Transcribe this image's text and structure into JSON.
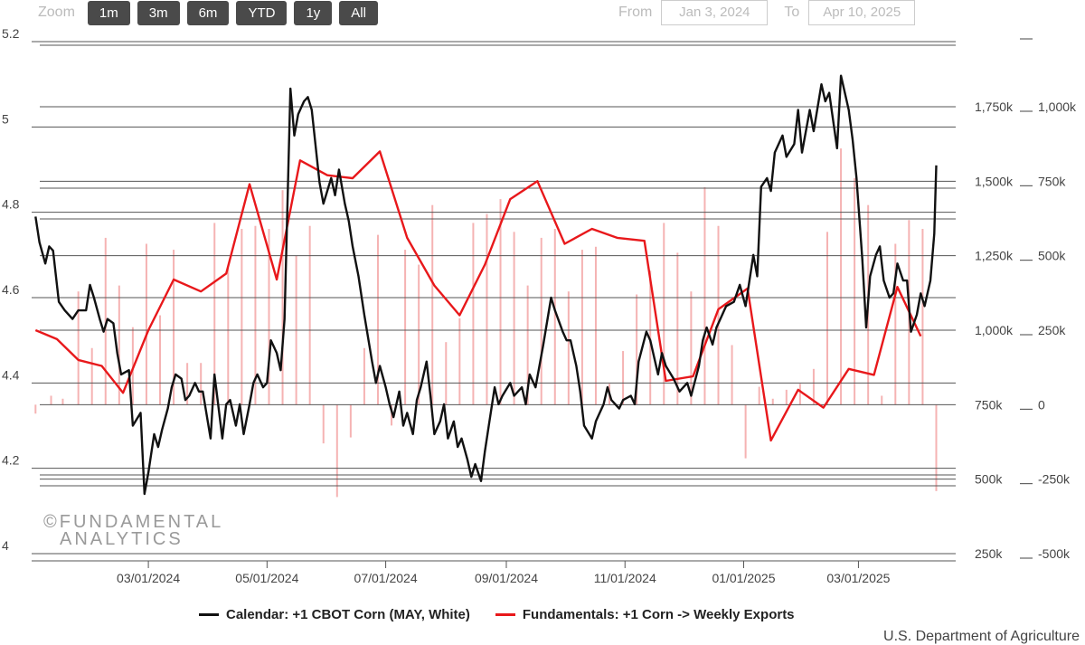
{
  "toolbar": {
    "zoom_label": "Zoom",
    "buttons": [
      "1m",
      "3m",
      "6m",
      "YTD",
      "1y",
      "All"
    ],
    "from_label": "From",
    "from_value": "Jan 3, 2024",
    "to_label": "To",
    "to_value": "Apr 10, 2025"
  },
  "watermark": {
    "line1": "©FUNDAMENTAL",
    "line2": "ANALYTICS"
  },
  "credit": "U.S. Department of Agriculture",
  "colors": {
    "calendar": "#111111",
    "fundamentals": "#e8181b",
    "bars": "#f5b3b3",
    "grid": "#555555"
  },
  "chart_data": {
    "type": "line",
    "x_ticks": [
      "03/01/2024",
      "05/01/2024",
      "07/01/2024",
      "09/01/2024",
      "11/01/2024",
      "01/01/2025",
      "03/01/2025"
    ],
    "xlim": [
      "2024-01-01",
      "2025-04-20"
    ],
    "y_left": {
      "ticks": [
        "5.2",
        "5",
        "4.8",
        "4.6",
        "4.4",
        "4.2",
        "4"
      ],
      "ylim": [
        4.0,
        5.2
      ]
    },
    "y_right_outer": {
      "ticks": [
        "1,000k",
        "750k",
        "500k",
        "250k",
        "0",
        "-250k",
        "-500k"
      ],
      "ylim": [
        -500000,
        1000000
      ]
    },
    "y_right_inner": {
      "ticks": [
        "1,750k",
        "1,500k",
        "1,250k",
        "1,000k",
        "750k",
        "500k",
        "250k"
      ],
      "ylim": [
        250000,
        1750000
      ]
    },
    "legend": [
      {
        "name": "Calendar: +1 CBOT Corn (MAY, White)"
      },
      {
        "name": "Fundamentals: +1 Corn -> Weekly Exports"
      }
    ],
    "series": [
      {
        "name": "Calendar: +1 CBOT Corn (MAY, White)",
        "axis": "left",
        "points": [
          [
            "2024-01-03",
            4.79
          ],
          [
            "2024-01-05",
            4.73
          ],
          [
            "2024-01-08",
            4.68
          ],
          [
            "2024-01-10",
            4.72
          ],
          [
            "2024-01-12",
            4.71
          ],
          [
            "2024-01-15",
            4.59
          ],
          [
            "2024-01-18",
            4.57
          ],
          [
            "2024-01-22",
            4.55
          ],
          [
            "2024-01-25",
            4.57
          ],
          [
            "2024-01-29",
            4.57
          ],
          [
            "2024-01-31",
            4.63
          ],
          [
            "2024-02-02",
            4.6
          ],
          [
            "2024-02-05",
            4.55
          ],
          [
            "2024-02-07",
            4.52
          ],
          [
            "2024-02-09",
            4.55
          ],
          [
            "2024-02-12",
            4.54
          ],
          [
            "2024-02-14",
            4.47
          ],
          [
            "2024-02-16",
            4.42
          ],
          [
            "2024-02-20",
            4.43
          ],
          [
            "2024-02-22",
            4.3
          ],
          [
            "2024-02-26",
            4.33
          ],
          [
            "2024-02-28",
            4.14
          ],
          [
            "2024-03-01",
            4.19
          ],
          [
            "2024-03-04",
            4.28
          ],
          [
            "2024-03-06",
            4.25
          ],
          [
            "2024-03-08",
            4.29
          ],
          [
            "2024-03-11",
            4.34
          ],
          [
            "2024-03-13",
            4.39
          ],
          [
            "2024-03-15",
            4.42
          ],
          [
            "2024-03-18",
            4.41
          ],
          [
            "2024-03-20",
            4.36
          ],
          [
            "2024-03-22",
            4.37
          ],
          [
            "2024-03-25",
            4.4
          ],
          [
            "2024-03-27",
            4.38
          ],
          [
            "2024-03-29",
            4.38
          ],
          [
            "2024-04-02",
            4.27
          ],
          [
            "2024-04-04",
            4.42
          ],
          [
            "2024-04-08",
            4.27
          ],
          [
            "2024-04-10",
            4.35
          ],
          [
            "2024-04-12",
            4.36
          ],
          [
            "2024-04-15",
            4.3
          ],
          [
            "2024-04-17",
            4.35
          ],
          [
            "2024-04-19",
            4.28
          ],
          [
            "2024-04-22",
            4.35
          ],
          [
            "2024-04-24",
            4.4
          ],
          [
            "2024-04-26",
            4.42
          ],
          [
            "2024-04-29",
            4.39
          ],
          [
            "2024-05-01",
            4.4
          ],
          [
            "2024-05-03",
            4.5
          ],
          [
            "2024-05-06",
            4.47
          ],
          [
            "2024-05-08",
            4.43
          ],
          [
            "2024-05-10",
            4.55
          ],
          [
            "2024-05-13",
            5.09
          ],
          [
            "2024-05-15",
            4.98
          ],
          [
            "2024-05-17",
            5.03
          ],
          [
            "2024-05-20",
            5.06
          ],
          [
            "2024-05-22",
            5.07
          ],
          [
            "2024-05-24",
            5.04
          ],
          [
            "2024-05-28",
            4.87
          ],
          [
            "2024-05-30",
            4.82
          ],
          [
            "2024-06-03",
            4.88
          ],
          [
            "2024-06-05",
            4.84
          ],
          [
            "2024-06-07",
            4.9
          ],
          [
            "2024-06-10",
            4.82
          ],
          [
            "2024-06-12",
            4.78
          ],
          [
            "2024-06-14",
            4.72
          ],
          [
            "2024-06-17",
            4.65
          ],
          [
            "2024-06-20",
            4.56
          ],
          [
            "2024-06-24",
            4.45
          ],
          [
            "2024-06-26",
            4.4
          ],
          [
            "2024-06-28",
            4.44
          ],
          [
            "2024-07-01",
            4.39
          ],
          [
            "2024-07-03",
            4.35
          ],
          [
            "2024-07-05",
            4.32
          ],
          [
            "2024-07-08",
            4.38
          ],
          [
            "2024-07-10",
            4.3
          ],
          [
            "2024-07-12",
            4.33
          ],
          [
            "2024-07-15",
            4.28
          ],
          [
            "2024-07-17",
            4.36
          ],
          [
            "2024-07-19",
            4.39
          ],
          [
            "2024-07-22",
            4.45
          ],
          [
            "2024-07-24",
            4.37
          ],
          [
            "2024-07-26",
            4.28
          ],
          [
            "2024-07-29",
            4.31
          ],
          [
            "2024-07-31",
            4.35
          ],
          [
            "2024-08-02",
            4.27
          ],
          [
            "2024-08-05",
            4.31
          ],
          [
            "2024-08-07",
            4.25
          ],
          [
            "2024-08-09",
            4.27
          ],
          [
            "2024-08-12",
            4.22
          ],
          [
            "2024-08-14",
            4.18
          ],
          [
            "2024-08-16",
            4.21
          ],
          [
            "2024-08-19",
            4.17
          ],
          [
            "2024-08-21",
            4.24
          ],
          [
            "2024-08-23",
            4.3
          ],
          [
            "2024-08-26",
            4.39
          ],
          [
            "2024-08-28",
            4.35
          ],
          [
            "2024-08-30",
            4.37
          ],
          [
            "2024-09-03",
            4.4
          ],
          [
            "2024-09-05",
            4.37
          ],
          [
            "2024-09-09",
            4.39
          ],
          [
            "2024-09-11",
            4.35
          ],
          [
            "2024-09-13",
            4.42
          ],
          [
            "2024-09-16",
            4.39
          ],
          [
            "2024-09-18",
            4.44
          ],
          [
            "2024-09-20",
            4.49
          ],
          [
            "2024-09-24",
            4.6
          ],
          [
            "2024-09-26",
            4.57
          ],
          [
            "2024-09-30",
            4.52
          ],
          [
            "2024-10-02",
            4.5
          ],
          [
            "2024-10-04",
            4.5
          ],
          [
            "2024-10-07",
            4.44
          ],
          [
            "2024-10-09",
            4.38
          ],
          [
            "2024-10-11",
            4.3
          ],
          [
            "2024-10-15",
            4.27
          ],
          [
            "2024-10-17",
            4.31
          ],
          [
            "2024-10-21",
            4.35
          ],
          [
            "2024-10-23",
            4.39
          ],
          [
            "2024-10-25",
            4.36
          ],
          [
            "2024-10-29",
            4.34
          ],
          [
            "2024-10-31",
            4.36
          ],
          [
            "2024-11-04",
            4.37
          ],
          [
            "2024-11-06",
            4.35
          ],
          [
            "2024-11-08",
            4.45
          ],
          [
            "2024-11-12",
            4.52
          ],
          [
            "2024-11-14",
            4.5
          ],
          [
            "2024-11-18",
            4.42
          ],
          [
            "2024-11-20",
            4.47
          ],
          [
            "2024-11-22",
            4.44
          ],
          [
            "2024-11-26",
            4.41
          ],
          [
            "2024-11-29",
            4.38
          ],
          [
            "2024-12-03",
            4.4
          ],
          [
            "2024-12-05",
            4.37
          ],
          [
            "2024-12-09",
            4.44
          ],
          [
            "2024-12-11",
            4.5
          ],
          [
            "2024-12-13",
            4.53
          ],
          [
            "2024-12-16",
            4.49
          ],
          [
            "2024-12-18",
            4.53
          ],
          [
            "2024-12-20",
            4.55
          ],
          [
            "2024-12-23",
            4.58
          ],
          [
            "2024-12-27",
            4.59
          ],
          [
            "2024-12-30",
            4.63
          ],
          [
            "2025-01-02",
            4.58
          ],
          [
            "2025-01-06",
            4.7
          ],
          [
            "2025-01-08",
            4.65
          ],
          [
            "2025-01-10",
            4.86
          ],
          [
            "2025-01-13",
            4.88
          ],
          [
            "2025-01-15",
            4.85
          ],
          [
            "2025-01-17",
            4.94
          ],
          [
            "2025-01-21",
            4.98
          ],
          [
            "2025-01-23",
            4.93
          ],
          [
            "2025-01-27",
            4.96
          ],
          [
            "2025-01-29",
            5.04
          ],
          [
            "2025-01-31",
            4.94
          ],
          [
            "2025-02-04",
            5.04
          ],
          [
            "2025-02-06",
            4.99
          ],
          [
            "2025-02-10",
            5.1
          ],
          [
            "2025-02-12",
            5.06
          ],
          [
            "2025-02-14",
            5.08
          ],
          [
            "2025-02-18",
            4.95
          ],
          [
            "2025-02-20",
            5.12
          ],
          [
            "2025-02-24",
            5.04
          ],
          [
            "2025-02-26",
            4.97
          ],
          [
            "2025-02-28",
            4.88
          ],
          [
            "2025-03-03",
            4.69
          ],
          [
            "2025-03-05",
            4.53
          ],
          [
            "2025-03-07",
            4.65
          ],
          [
            "2025-03-10",
            4.7
          ],
          [
            "2025-03-12",
            4.72
          ],
          [
            "2025-03-14",
            4.64
          ],
          [
            "2025-03-17",
            4.6
          ],
          [
            "2025-03-19",
            4.61
          ],
          [
            "2025-03-21",
            4.68
          ],
          [
            "2025-03-24",
            4.64
          ],
          [
            "2025-03-26",
            4.64
          ],
          [
            "2025-03-28",
            4.52
          ],
          [
            "2025-03-31",
            4.56
          ],
          [
            "2025-04-02",
            4.61
          ],
          [
            "2025-04-04",
            4.58
          ],
          [
            "2025-04-07",
            4.64
          ],
          [
            "2025-04-09",
            4.75
          ],
          [
            "2025-04-10",
            4.91
          ]
        ]
      },
      {
        "name": "Fundamentals: +1 Corn -> Weekly Exports",
        "axis": "right_inner",
        "points": [
          [
            "2024-01-03",
            1000000
          ],
          [
            "2024-01-14",
            970000
          ],
          [
            "2024-01-25",
            900000
          ],
          [
            "2024-02-06",
            880000
          ],
          [
            "2024-02-17",
            790000
          ],
          [
            "2024-03-01",
            1000000
          ],
          [
            "2024-03-14",
            1170000
          ],
          [
            "2024-03-28",
            1130000
          ],
          [
            "2024-04-10",
            1190000
          ],
          [
            "2024-04-22",
            1490000
          ],
          [
            "2024-05-06",
            1170000
          ],
          [
            "2024-05-18",
            1570000
          ],
          [
            "2024-06-01",
            1520000
          ],
          [
            "2024-06-14",
            1510000
          ],
          [
            "2024-06-28",
            1600000
          ],
          [
            "2024-07-12",
            1310000
          ],
          [
            "2024-07-26",
            1150000
          ],
          [
            "2024-08-08",
            1050000
          ],
          [
            "2024-08-21",
            1220000
          ],
          [
            "2024-09-03",
            1440000
          ],
          [
            "2024-09-17",
            1500000
          ],
          [
            "2024-10-01",
            1290000
          ],
          [
            "2024-10-15",
            1340000
          ],
          [
            "2024-10-28",
            1310000
          ],
          [
            "2024-11-11",
            1300000
          ],
          [
            "2024-11-22",
            830000
          ],
          [
            "2024-12-06",
            845000
          ],
          [
            "2024-12-19",
            1070000
          ],
          [
            "2025-01-03",
            1140000
          ],
          [
            "2025-01-15",
            630000
          ],
          [
            "2025-01-29",
            800000
          ],
          [
            "2025-02-11",
            740000
          ],
          [
            "2025-02-24",
            870000
          ],
          [
            "2025-03-09",
            850000
          ],
          [
            "2025-03-21",
            1145000
          ],
          [
            "2025-04-02",
            980000
          ]
        ]
      }
    ],
    "bars": {
      "axis": "right_outer",
      "dates": [
        "2024-01-03",
        "2024-01-11",
        "2024-01-17",
        "2024-01-25",
        "2024-02-01",
        "2024-02-08",
        "2024-02-15",
        "2024-02-22",
        "2024-02-29",
        "2024-03-07",
        "2024-03-14",
        "2024-03-21",
        "2024-03-28",
        "2024-04-04",
        "2024-04-11",
        "2024-04-18",
        "2024-04-25",
        "2024-05-02",
        "2024-05-09",
        "2024-05-16",
        "2024-05-23",
        "2024-05-30",
        "2024-06-06",
        "2024-06-13",
        "2024-06-20",
        "2024-06-27",
        "2024-07-04",
        "2024-07-11",
        "2024-07-18",
        "2024-07-25",
        "2024-08-01",
        "2024-08-08",
        "2024-08-15",
        "2024-08-22",
        "2024-08-29",
        "2024-09-05",
        "2024-09-12",
        "2024-09-19",
        "2024-09-26",
        "2024-10-03",
        "2024-10-10",
        "2024-10-17",
        "2024-10-24",
        "2024-10-31",
        "2024-11-07",
        "2024-11-14",
        "2024-11-21",
        "2024-11-28",
        "2024-12-05",
        "2024-12-12",
        "2024-12-19",
        "2024-12-26",
        "2025-01-02",
        "2025-01-09",
        "2025-01-16",
        "2025-01-23",
        "2025-01-30",
        "2025-02-06",
        "2025-02-13",
        "2025-02-20",
        "2025-02-27",
        "2025-03-06",
        "2025-03-13",
        "2025-03-20",
        "2025-03-27",
        "2025-04-03",
        "2025-04-10"
      ],
      "values": [
        -30000,
        30000,
        20000,
        380000,
        190000,
        560000,
        400000,
        260000,
        540000,
        300000,
        520000,
        140000,
        140000,
        610000,
        460000,
        590000,
        600000,
        590000,
        720000,
        500000,
        600000,
        -130000,
        -310000,
        -110000,
        190000,
        570000,
        -70000,
        520000,
        470000,
        670000,
        210000,
        290000,
        610000,
        640000,
        690000,
        580000,
        400000,
        560000,
        590000,
        380000,
        520000,
        530000,
        70000,
        180000,
        370000,
        450000,
        610000,
        510000,
        380000,
        730000,
        600000,
        200000,
        -180000,
        60000,
        20000,
        50000,
        70000,
        120000,
        580000,
        860000,
        760000,
        670000,
        30000,
        540000,
        620000,
        590000,
        -290000
      ]
    }
  }
}
